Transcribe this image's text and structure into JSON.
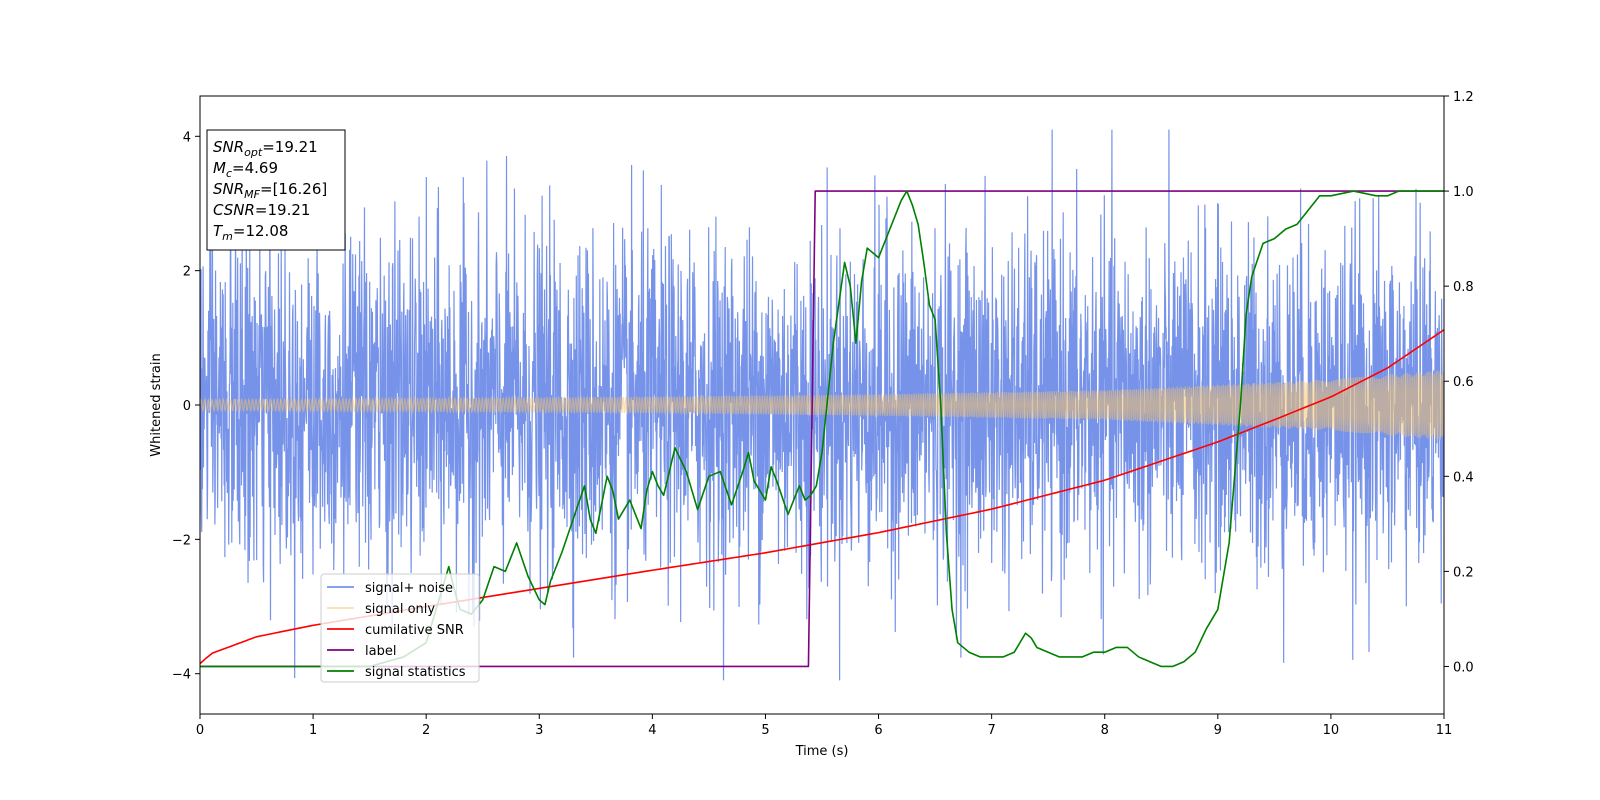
{
  "chart_data": {
    "type": "line",
    "xlabel": "Time (s)",
    "ylabel": "Whitened strain",
    "xlim": [
      0,
      11
    ],
    "ylim_left": [
      -4.6,
      4.6
    ],
    "ylim_right": [
      -0.1,
      1.2
    ],
    "x_ticks": [
      "0",
      "1",
      "2",
      "3",
      "4",
      "5",
      "6",
      "7",
      "8",
      "9",
      "10",
      "11"
    ],
    "y_ticks_left": [
      "−4",
      "−2",
      "0",
      "2",
      "4"
    ],
    "y_ticks_right": [
      "0.0",
      "0.2",
      "0.4",
      "0.6",
      "0.8",
      "1.0",
      "1.2"
    ],
    "grid": false,
    "legend_position": "lower-left",
    "info_box": {
      "lines": [
        {
          "main": "SNR",
          "sub": "opt",
          "value": "=19.21"
        },
        {
          "main": "M",
          "sub": "c",
          "value": "=4.69"
        },
        {
          "main": "SNR",
          "sub": "MF",
          "value": "=[16.26]"
        },
        {
          "main": "CSNR",
          "sub": "",
          "value": "=19.21"
        },
        {
          "main": "T",
          "sub": "m",
          "value": "=12.08"
        }
      ]
    },
    "series": [
      {
        "name": "signal+ noise",
        "color": "#4169e1",
        "axis": "left",
        "style": "noise",
        "amplitude_std": 1.25,
        "peak_abs": 4.1
      },
      {
        "name": "signal only",
        "color": "#f5c26b",
        "axis": "left",
        "style": "chirp",
        "envelope": {
          "x": [
            0,
            2,
            4,
            6,
            8,
            10,
            11
          ],
          "y": [
            0.08,
            0.1,
            0.12,
            0.16,
            0.22,
            0.38,
            0.52
          ]
        }
      },
      {
        "name": "cumilative SNR",
        "color": "#ff0000",
        "axis": "left",
        "x": [
          0,
          0.1,
          0.5,
          1,
          2,
          3,
          4,
          5,
          6,
          7,
          8,
          9,
          9.5,
          10,
          10.5,
          11
        ],
        "y": [
          -3.85,
          -3.7,
          -3.45,
          -3.28,
          -3.0,
          -2.73,
          -2.46,
          -2.2,
          -1.9,
          -1.55,
          -1.12,
          -0.55,
          -0.22,
          0.12,
          0.55,
          1.12
        ]
      },
      {
        "name": "label",
        "color": "#800080",
        "axis": "right",
        "x": [
          0,
          5.38,
          5.44,
          11
        ],
        "y": [
          0,
          0,
          1,
          1
        ]
      },
      {
        "name": "signal statistics",
        "color": "#008000",
        "axis": "right",
        "x": [
          0,
          0.5,
          1,
          1.5,
          1.8,
          2.0,
          2.2,
          2.25,
          2.3,
          2.4,
          2.5,
          2.6,
          2.7,
          2.8,
          2.9,
          3.0,
          3.05,
          3.1,
          3.2,
          3.3,
          3.4,
          3.45,
          3.5,
          3.6,
          3.65,
          3.7,
          3.8,
          3.9,
          3.95,
          4.0,
          4.05,
          4.1,
          4.2,
          4.3,
          4.4,
          4.5,
          4.6,
          4.7,
          4.8,
          4.85,
          4.9,
          5.0,
          5.05,
          5.1,
          5.2,
          5.3,
          5.35,
          5.4,
          5.45,
          5.5,
          5.6,
          5.7,
          5.75,
          5.8,
          5.85,
          5.9,
          6.0,
          6.1,
          6.2,
          6.25,
          6.3,
          6.35,
          6.4,
          6.45,
          6.5,
          6.55,
          6.6,
          6.65,
          6.7,
          6.8,
          6.9,
          7.0,
          7.1,
          7.2,
          7.3,
          7.35,
          7.4,
          7.5,
          7.6,
          7.7,
          7.8,
          7.9,
          8.0,
          8.1,
          8.2,
          8.3,
          8.4,
          8.5,
          8.6,
          8.7,
          8.8,
          8.9,
          9.0,
          9.1,
          9.2,
          9.25,
          9.3,
          9.4,
          9.5,
          9.6,
          9.7,
          9.8,
          9.9,
          10.0,
          10.2,
          10.4,
          10.5,
          10.6,
          10.8,
          11.0
        ],
        "y": [
          0.0,
          0.0,
          0.0,
          0.0,
          0.02,
          0.05,
          0.21,
          0.16,
          0.12,
          0.11,
          0.14,
          0.21,
          0.2,
          0.26,
          0.19,
          0.14,
          0.13,
          0.18,
          0.24,
          0.31,
          0.38,
          0.31,
          0.28,
          0.4,
          0.37,
          0.31,
          0.35,
          0.29,
          0.37,
          0.41,
          0.38,
          0.36,
          0.46,
          0.41,
          0.33,
          0.4,
          0.41,
          0.34,
          0.41,
          0.45,
          0.39,
          0.35,
          0.42,
          0.39,
          0.32,
          0.38,
          0.35,
          0.36,
          0.38,
          0.45,
          0.68,
          0.85,
          0.8,
          0.68,
          0.81,
          0.88,
          0.86,
          0.92,
          0.98,
          1.0,
          0.97,
          0.93,
          0.85,
          0.76,
          0.73,
          0.55,
          0.28,
          0.12,
          0.05,
          0.03,
          0.02,
          0.02,
          0.02,
          0.03,
          0.07,
          0.06,
          0.04,
          0.03,
          0.02,
          0.02,
          0.02,
          0.03,
          0.03,
          0.04,
          0.04,
          0.02,
          0.01,
          0.0,
          0.0,
          0.01,
          0.03,
          0.08,
          0.12,
          0.26,
          0.55,
          0.74,
          0.82,
          0.89,
          0.9,
          0.92,
          0.93,
          0.96,
          0.99,
          0.99,
          1.0,
          0.99,
          0.99,
          1.0,
          1.0,
          1.0
        ]
      }
    ]
  }
}
